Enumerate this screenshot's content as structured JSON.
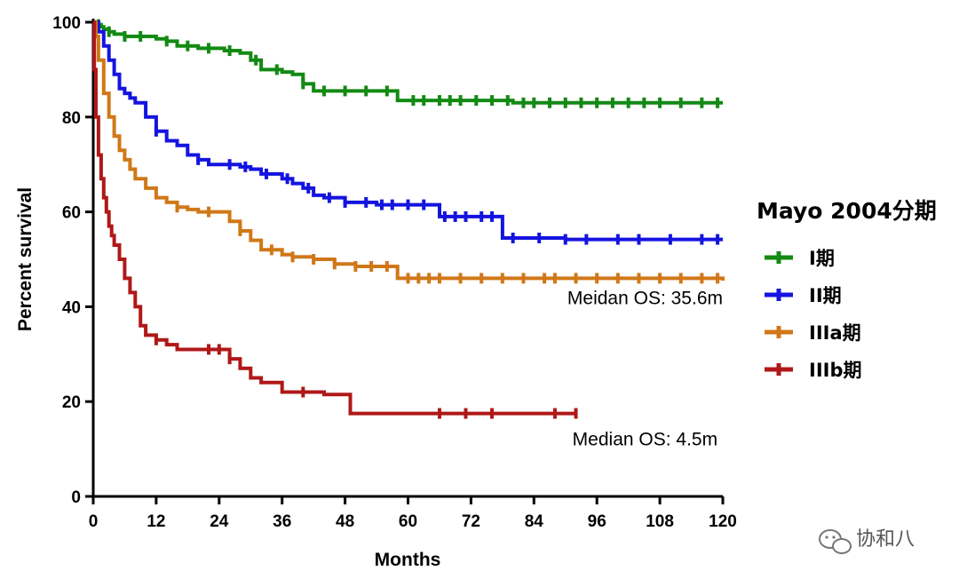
{
  "chart_data": {
    "type": "line",
    "subtype": "kaplan-meier step",
    "xlabel": "Months",
    "ylabel": "Percent survival",
    "xlim": [
      0,
      120
    ],
    "ylim": [
      0,
      100
    ],
    "xticks": [
      0,
      12,
      24,
      36,
      48,
      60,
      72,
      84,
      96,
      108,
      120
    ],
    "yticks": [
      0,
      20,
      40,
      60,
      80,
      100
    ],
    "grid": false,
    "legend": {
      "title": "Mayo 2004分期",
      "placement": "right"
    },
    "series": [
      {
        "name": "I期",
        "color": "#138a13",
        "x": [
          0,
          0.5,
          1,
          1.5,
          2,
          3,
          4,
          6,
          8,
          10,
          12,
          14,
          16,
          20,
          24,
          25,
          26,
          28,
          30,
          32,
          34,
          36,
          38,
          40,
          42,
          44,
          50,
          58,
          60,
          70,
          80,
          100,
          120
        ],
        "y": [
          100,
          100,
          99.5,
          99,
          98.5,
          98,
          97.5,
          97,
          97,
          97,
          96.5,
          96,
          95,
          94.5,
          94.5,
          94,
          94,
          93.5,
          92,
          90,
          90,
          89.5,
          89,
          87,
          85.5,
          85.5,
          85.5,
          83.5,
          83.5,
          83.5,
          83,
          83,
          83
        ],
        "censor_x": [
          1,
          3,
          6,
          9,
          14,
          18,
          22,
          26,
          31,
          35,
          40,
          44,
          48,
          52,
          56,
          61,
          63,
          66,
          68,
          70,
          73,
          76,
          79,
          82,
          84,
          87,
          90,
          93,
          96,
          99,
          102,
          105,
          108,
          112,
          116,
          119
        ]
      },
      {
        "name": "II期",
        "color": "#1414e0",
        "x": [
          0,
          1,
          2,
          3,
          4,
          5,
          6,
          7,
          8,
          10,
          12,
          14,
          16,
          18,
          20,
          22,
          24,
          28,
          30,
          32,
          36,
          38,
          40,
          42,
          44,
          48,
          54,
          60,
          66,
          70,
          78,
          90,
          120
        ],
        "y": [
          100,
          98,
          95,
          92,
          89,
          86,
          85,
          84,
          83,
          80,
          77,
          75,
          74,
          72,
          71,
          70,
          70,
          69.5,
          69,
          68,
          67,
          66,
          65,
          63.5,
          63,
          62,
          61.5,
          61.5,
          59,
          59,
          54.5,
          54.2,
          54.2
        ],
        "censor_x": [
          12,
          20,
          26,
          29,
          33,
          37,
          41,
          45,
          48,
          52,
          55,
          57,
          60,
          63,
          67,
          69,
          71,
          74,
          76,
          80,
          85,
          90,
          94,
          100,
          104,
          110,
          116,
          119
        ]
      },
      {
        "name": "IIIa期",
        "color": "#d07818",
        "x": [
          0,
          0.5,
          1,
          2,
          3,
          4,
          5,
          6,
          7,
          8,
          10,
          12,
          14,
          16,
          18,
          20,
          24,
          26,
          28,
          30,
          32,
          36,
          38,
          40,
          42,
          44,
          46,
          48,
          50,
          54,
          58,
          70,
          120
        ],
        "y": [
          100,
          97,
          92,
          85,
          80,
          76,
          73,
          71,
          69,
          67,
          65,
          63,
          62,
          61,
          60.5,
          60,
          60,
          58,
          56,
          54,
          52,
          51,
          50.5,
          50.5,
          50,
          50,
          49,
          49,
          48.5,
          48.5,
          46,
          46,
          45.5
        ],
        "censor_x": [
          16,
          22,
          28,
          34,
          38,
          42,
          46,
          50,
          53,
          56,
          60,
          62,
          64,
          66,
          70,
          74,
          78,
          82,
          86,
          88,
          92,
          96,
          100,
          104,
          108,
          112,
          116,
          119
        ]
      },
      {
        "name": "IIIb期",
        "color": "#b01818",
        "x": [
          0,
          0.2,
          0.5,
          1,
          1.5,
          2,
          2.5,
          3,
          3.5,
          4,
          5,
          6,
          7,
          8,
          9,
          10,
          12,
          14,
          16,
          20,
          24,
          26,
          28,
          30,
          32,
          36,
          40,
          44,
          48,
          49,
          60,
          80,
          92
        ],
        "y": [
          100,
          90,
          80,
          72,
          67,
          63,
          60,
          57,
          55,
          53,
          50,
          46,
          43,
          40,
          36,
          34,
          33,
          32,
          31,
          31,
          31,
          29,
          27,
          25,
          24,
          22,
          22,
          21.5,
          21.5,
          17.5,
          17.5,
          17.5,
          17.5
        ],
        "censor_x": [
          12,
          22,
          24,
          26,
          40,
          66,
          71,
          76,
          88,
          92
        ]
      }
    ],
    "annotations": [
      {
        "text": "Meidan OS: 35.6m",
        "x": 120,
        "y": 40.5,
        "anchor": "end"
      },
      {
        "text": "Median OS: 4.5m",
        "x": 119,
        "y": 10.8,
        "anchor": "end"
      }
    ]
  },
  "watermark": {
    "text": "协和八",
    "icon": "wechat-icon"
  }
}
